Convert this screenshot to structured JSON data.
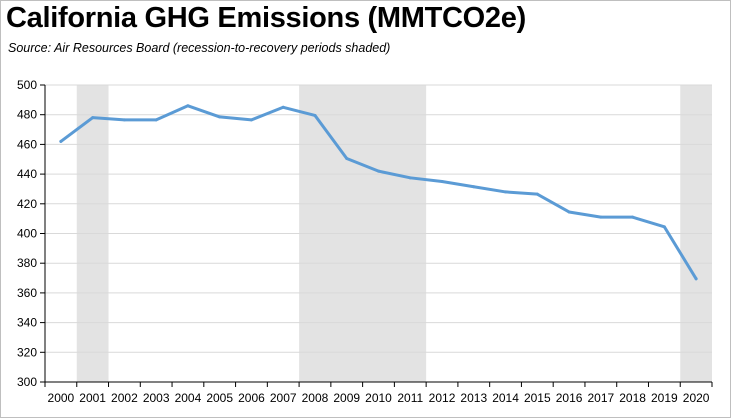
{
  "chart_data": {
    "type": "line",
    "title": "California GHG Emissions (MMTCO2e)",
    "subtitle": "Source:  Air Resources Board (recession-to-recovery periods shaded)",
    "xlabel": "",
    "ylabel": "",
    "ylim": [
      300,
      500
    ],
    "yticks": [
      300,
      320,
      340,
      360,
      380,
      400,
      420,
      440,
      460,
      480,
      500
    ],
    "grid": "horizontal",
    "legend": "none",
    "x": [
      "2000",
      "2001",
      "2002",
      "2003",
      "2004",
      "2005",
      "2006",
      "2007",
      "2008",
      "2009",
      "2010",
      "2011",
      "2012",
      "2013",
      "2014",
      "2015",
      "2016",
      "2017",
      "2018",
      "2019",
      "2020"
    ],
    "series": [
      {
        "values": [
          462,
          478,
          476.5,
          476.5,
          486,
          478.5,
          476.5,
          485,
          479.5,
          450.5,
          442,
          437.5,
          435,
          431.5,
          428,
          426.5,
          414.5,
          411,
          411,
          404.5,
          369.5
        ]
      }
    ],
    "shaded_periods": [
      [
        "2001",
        "2001"
      ],
      [
        "2008",
        "2011"
      ],
      [
        "2020",
        "2020"
      ]
    ],
    "colors": {
      "line": "#5b9bd5",
      "shade": "#e3e3e3",
      "grid": "#d9d9d9",
      "axis": "#000000"
    }
  }
}
